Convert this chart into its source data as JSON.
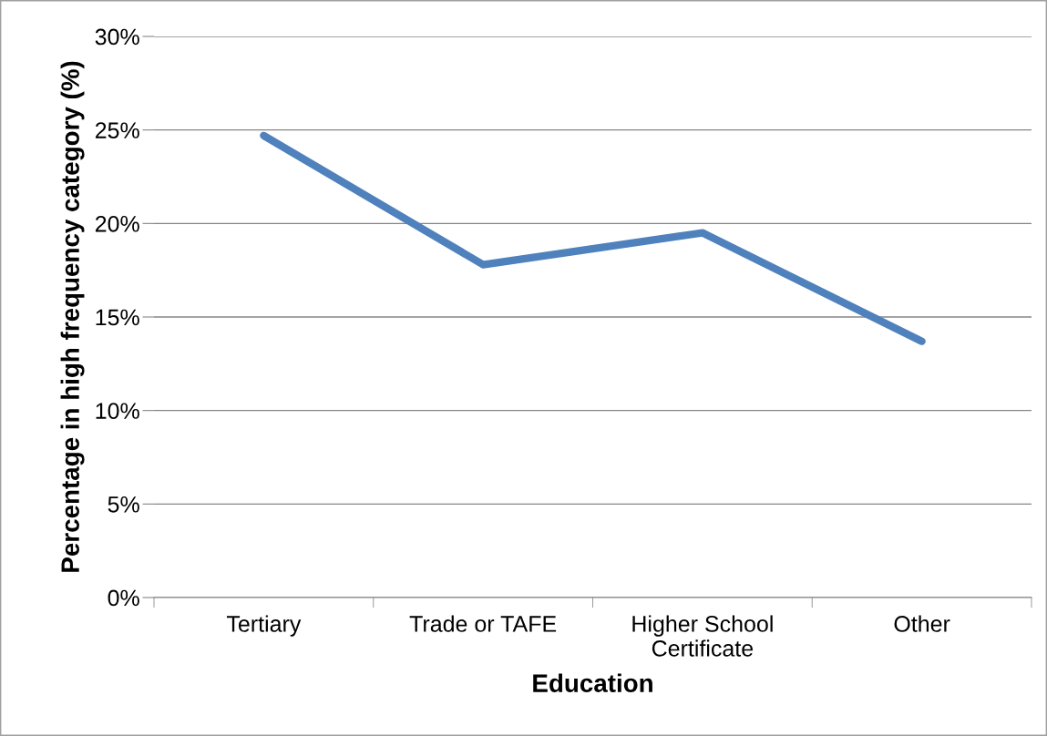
{
  "chart_data": {
    "type": "line",
    "xlabel": "Education",
    "ylabel": "Percentage in high frequency category (%)",
    "categories": [
      "Tertiary",
      "Trade or TAFE",
      "Higher School\nCertificate",
      "Other"
    ],
    "series": [
      {
        "color": "#4f81bd",
        "values": [
          24.7,
          17.8,
          19.5,
          13.7
        ]
      }
    ],
    "ylim": [
      0,
      30
    ],
    "yticks": [
      {
        "value": 0,
        "label": "0%"
      },
      {
        "value": 5,
        "label": "5%"
      },
      {
        "value": 10,
        "label": "10%"
      },
      {
        "value": 15,
        "label": "15%"
      },
      {
        "value": 20,
        "label": "20%"
      },
      {
        "value": 25,
        "label": "25%"
      },
      {
        "value": 30,
        "label": "30%"
      }
    ],
    "grid": "y",
    "legend": false,
    "marker": "none",
    "line_style": "solid"
  }
}
